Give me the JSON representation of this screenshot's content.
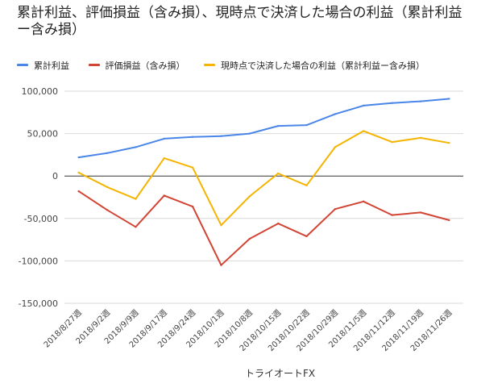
{
  "chart_data": {
    "type": "line",
    "title": "累計利益、評価損益（含み損）、現時点で決済した場合の利益（累計利益ー含み損）",
    "xlabel": "トライオートFX",
    "ylabel": "",
    "ylim": [
      -150000,
      100000
    ],
    "yticks": [
      100000,
      50000,
      0,
      -50000,
      -100000,
      -150000
    ],
    "ytick_labels": [
      "100,000",
      "50,000",
      "0",
      "-50,000",
      "-100,000",
      "-150,000"
    ],
    "categories": [
      "2018/8/27週",
      "2018/9/2週",
      "2018/9/9週",
      "2018/9/17週",
      "2018/9/24週",
      "2018/10/1週",
      "2018/10/8週",
      "2018/10/15週",
      "2018/10/22週",
      "2018/10/29週",
      "2018/11/5週",
      "2018/11/12週",
      "2018/11/19週",
      "2018/11/26週"
    ],
    "grid": true,
    "legend_position": "top-left",
    "series": [
      {
        "name": "累計利益",
        "color": "#4a86e8",
        "values": [
          22000,
          27000,
          34000,
          44000,
          46000,
          47000,
          50000,
          59000,
          60000,
          73000,
          83000,
          86000,
          88000,
          91000
        ]
      },
      {
        "name": "評価損益（含み損）",
        "color": "#d24535",
        "values": [
          -18000,
          -40000,
          -60000,
          -23000,
          -36000,
          -105000,
          -74000,
          -56000,
          -71000,
          -39000,
          -30000,
          -46000,
          -43000,
          -52000
        ]
      },
      {
        "name": "現時点で決済した場合の利益（累計利益ー含み損）",
        "color": "#f4b400",
        "values": [
          4000,
          -13000,
          -27000,
          21000,
          10000,
          -58000,
          -24000,
          3000,
          -11000,
          34000,
          53000,
          40000,
          45000,
          39000
        ]
      }
    ]
  }
}
